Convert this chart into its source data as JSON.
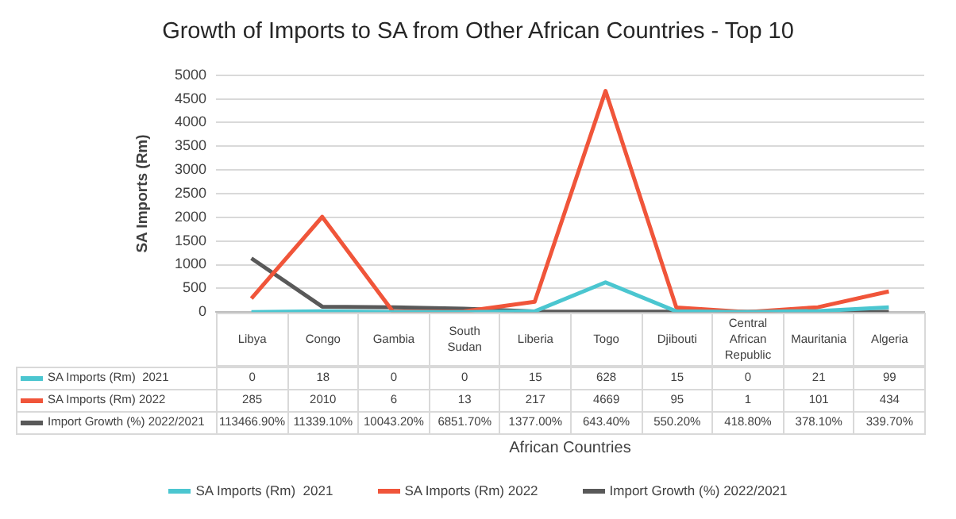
{
  "chart_data": {
    "type": "line",
    "title": "Growth of Imports to SA from Other African Countries - Top 10",
    "xlabel": "African Countries",
    "ylabel": "SA Imports (Rm)",
    "categories": [
      "Libya",
      "Congo",
      "Gambia",
      "South Sudan",
      "Liberia",
      "Togo",
      "Djibouti",
      "Central African Republic",
      "Mauritania",
      "Algeria"
    ],
    "series": [
      {
        "name": "SA Imports (Rm)  2021",
        "color": "#4bc6d0",
        "values": [
          0,
          18,
          0,
          0,
          15,
          628,
          15,
          0,
          21,
          99
        ]
      },
      {
        "name": "SA Imports (Rm) 2022",
        "color": "#f0553a",
        "values": [
          285,
          2010,
          6,
          13,
          217,
          4669,
          95,
          1,
          101,
          434
        ]
      },
      {
        "name": "Import Growth (%) 2022/2021",
        "color": "#595959",
        "values": [
          1134.669,
          113.391,
          100.432,
          68.517,
          13.77,
          6.434,
          5.502,
          4.188,
          3.781,
          3.397
        ],
        "value_labels": [
          "113466.90%",
          "11339.10%",
          "10043.20%",
          "6851.70%",
          "1377.00%",
          "643.40%",
          "550.20%",
          "418.80%",
          "378.10%",
          "339.70%"
        ]
      }
    ],
    "ylim": [
      0,
      5000
    ],
    "yticks": [
      0,
      500,
      1000,
      1500,
      2000,
      2500,
      3000,
      3500,
      4000,
      4500,
      5000
    ],
    "grid": "y",
    "legend": "bottom",
    "data_labels": true,
    "marker": "none",
    "line_style": "solid"
  }
}
